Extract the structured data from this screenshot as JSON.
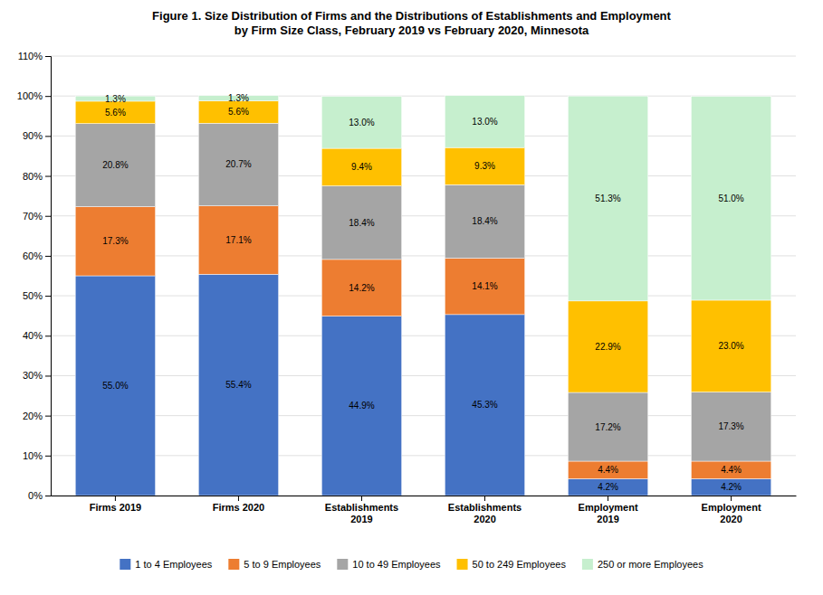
{
  "chart_data": {
    "type": "bar",
    "stacked": true,
    "title": "Figure 1. Size Distribution of Firms and the Distributions of Establishments and Employment\nby Firm Size Class, February 2019 vs February 2020, Minnesota",
    "categories": [
      "Firms 2019",
      "Firms 2020",
      "Establishments\n2019",
      "Establishments\n2020",
      "Employment\n2019",
      "Employment\n2020"
    ],
    "series": [
      {
        "name": "1 to 4 Employees",
        "color": "#4472C4",
        "values": [
          55.0,
          55.4,
          44.9,
          45.3,
          4.2,
          4.2
        ],
        "value_labels": [
          "55.0%",
          "55.4%",
          "44.9%",
          "45.3%",
          "4.2%",
          "4.2%"
        ]
      },
      {
        "name": "5 to 9 Employees",
        "color": "#ED7D31",
        "values": [
          17.3,
          17.1,
          14.2,
          14.1,
          4.4,
          4.4
        ],
        "value_labels": [
          "17.3%",
          "17.1%",
          "14.2%",
          "14.1%",
          "4.4%",
          "4.4%"
        ]
      },
      {
        "name": "10 to 49 Employees",
        "color": "#A5A5A5",
        "values": [
          20.8,
          20.7,
          18.4,
          18.4,
          17.2,
          17.3
        ],
        "value_labels": [
          "20.8%",
          "20.7%",
          "18.4%",
          "18.4%",
          "17.2%",
          "17.3%"
        ]
      },
      {
        "name": "50 to 249 Employees",
        "color": "#FFC000",
        "values": [
          5.6,
          5.6,
          9.4,
          9.3,
          22.9,
          23.0
        ],
        "value_labels": [
          "5.6%",
          "5.6%",
          "9.4%",
          "9.3%",
          "22.9%",
          "23.0%"
        ]
      },
      {
        "name": "250 or more Employees",
        "color": "#C6EFCE",
        "values": [
          1.3,
          1.3,
          13.0,
          13.0,
          51.3,
          51.0
        ],
        "value_labels": [
          "1.3%",
          "1.3%",
          "13.0%",
          "13.0%",
          "51.3%",
          "51.0%"
        ]
      }
    ],
    "data_labels": true,
    "ylim": [
      0,
      110
    ],
    "yticks": [
      {
        "value": 0,
        "label": "0%"
      },
      {
        "value": 10,
        "label": "10%"
      },
      {
        "value": 20,
        "label": "20%"
      },
      {
        "value": 30,
        "label": "30%"
      },
      {
        "value": 40,
        "label": "40%"
      },
      {
        "value": 50,
        "label": "50%"
      },
      {
        "value": 60,
        "label": "60%"
      },
      {
        "value": 70,
        "label": "70%"
      },
      {
        "value": 80,
        "label": "80%"
      },
      {
        "value": 90,
        "label": "90%"
      },
      {
        "value": 100,
        "label": "100%"
      },
      {
        "value": 110,
        "label": "110%"
      }
    ],
    "grid": true,
    "legend": "bottom"
  }
}
